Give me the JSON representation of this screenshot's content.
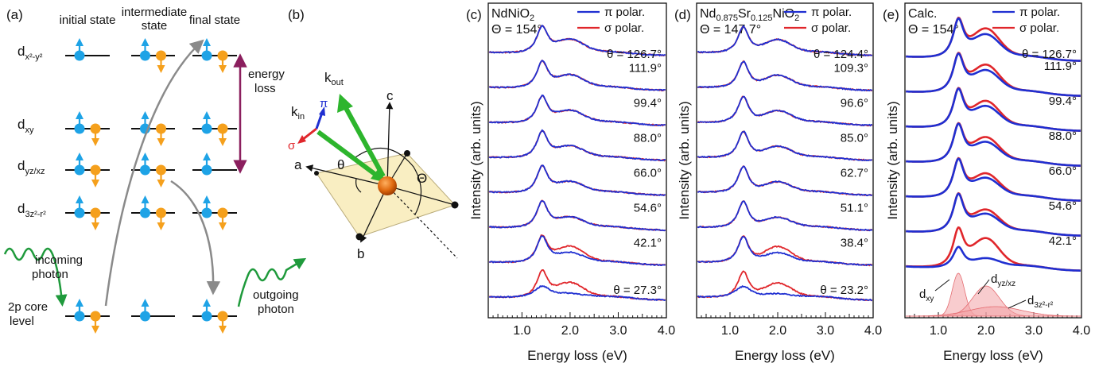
{
  "panels": {
    "a": {
      "label": "(a)",
      "states": [
        "initial state",
        "intermediate\nstate",
        "final state"
      ],
      "orbitals": [
        "d_x²-y²",
        "d_xy",
        "d_yz/xz",
        "d_3z²-r²"
      ],
      "energy_loss": "energy\nloss",
      "core_level": "2p core\nlevel",
      "incoming": "incoming\nphoton",
      "outgoing": "outgoing\nphoton"
    },
    "b": {
      "label": "(b)",
      "axes": [
        "a",
        "b",
        "c"
      ],
      "k_in": "k_in",
      "k_out": "k_out",
      "pi": "π",
      "sigma": "σ",
      "theta_small": "θ",
      "theta_big": "Θ"
    }
  },
  "colors": {
    "pi": "#1f2fd1",
    "sigma": "#e0262b",
    "electron_blue": "#1ea3e6",
    "electron_orange": "#f5a01c",
    "arrow_green": "#1f9a3c",
    "energy_arrow": "#8b1f5e",
    "plane": "#f9eec2",
    "sphere": "#e06a10"
  },
  "chart_data": [
    {
      "type": "line",
      "panel": "(c)",
      "title_line1": "NdNiO",
      "title_sub": "2",
      "title_line2": "Θ = 154°",
      "xlabel": "Energy loss (eV)",
      "ylabel": "Intensity (arb. units)",
      "xlim": [
        0.3,
        4.0
      ],
      "xticks": [
        "1.0",
        "2.0",
        "3.0",
        "4.0"
      ],
      "legend": [
        "π polar.",
        "σ polar."
      ],
      "angles": [
        "θ = 126.7°",
        "111.9°",
        "99.4°",
        "88.0°",
        "66.0°",
        "54.6°",
        "42.1°",
        "θ = 27.3°"
      ]
    },
    {
      "type": "line",
      "panel": "(d)",
      "title_line1": "Nd",
      "title_sub1": "0.875",
      "title_mid": "Sr",
      "title_sub2": "0.125",
      "title_end": "NiO",
      "title_sub3": "2",
      "title_line2": "Θ = 147.7°",
      "xlabel": "Energy loss (eV)",
      "ylabel": "Intensity (arb. units)",
      "xlim": [
        0.3,
        4.0
      ],
      "xticks": [
        "1.0",
        "2.0",
        "3.0",
        "4.0"
      ],
      "legend": [
        "π polar.",
        "σ polar."
      ],
      "angles": [
        "θ = 124.4°",
        "109.3°",
        "96.6°",
        "85.0°",
        "62.7°",
        "51.1°",
        "38.4°",
        "θ = 23.2°"
      ]
    },
    {
      "type": "line",
      "panel": "(e)",
      "title_line1": "Calc.",
      "title_line2": "Θ = 154°",
      "xlabel": "Energy loss (eV)",
      "ylabel": "Intensity (arb. units)",
      "xlim": [
        0.3,
        4.0
      ],
      "xticks": [
        "1.0",
        "2.0",
        "3.0",
        "4.0"
      ],
      "legend": [
        "π polar.",
        "σ polar."
      ],
      "angles": [
        "θ = 126.7°",
        "111.9°",
        "99.4°",
        "88.0°",
        "66.0°",
        "54.6°",
        "42.1°"
      ],
      "components": [
        "d_xy",
        "d_yz/xz",
        "d_3z²-r²"
      ]
    }
  ]
}
